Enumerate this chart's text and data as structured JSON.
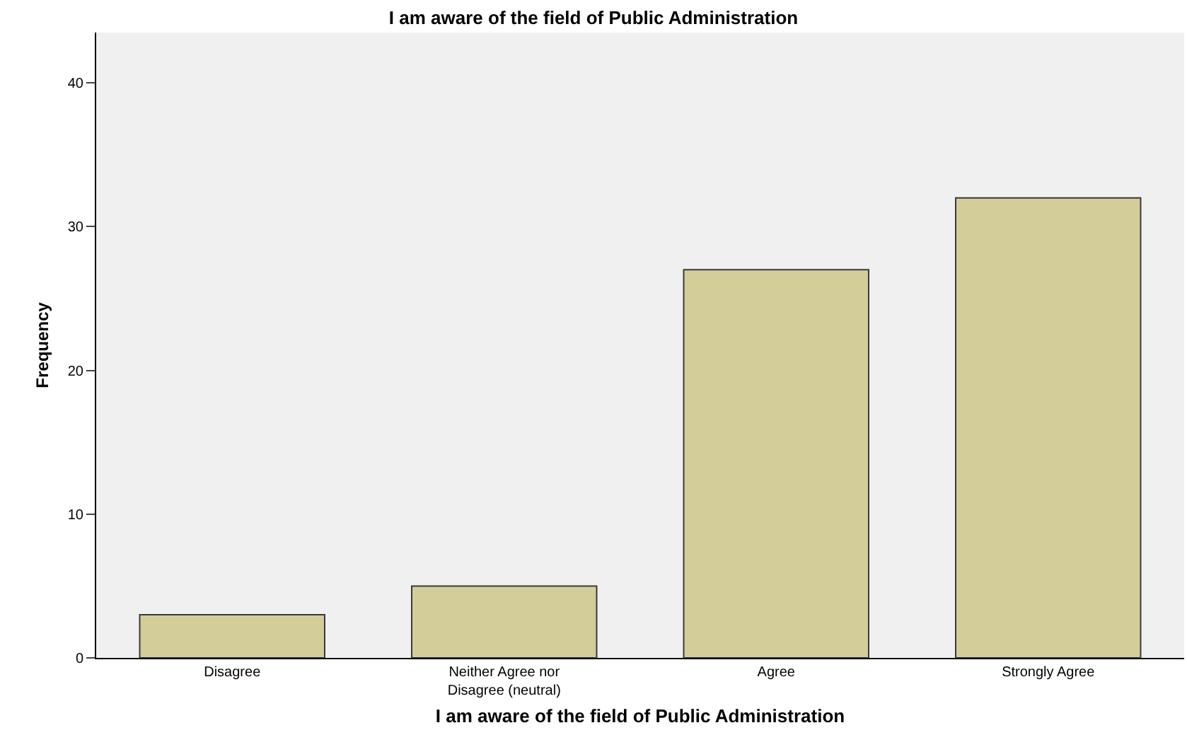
{
  "chart_data": {
    "type": "bar",
    "title": "I am aware of the field of Public Administration",
    "xlabel": "I am aware of the field of Public Administration",
    "ylabel": "Frequency",
    "categories": [
      "Disagree",
      "Neither Agree nor\nDisagree (neutral)",
      "Agree",
      "Strongly Agree"
    ],
    "values": [
      3,
      5,
      27,
      32
    ],
    "color": "#d3ce99",
    "ylim": [
      0,
      43.5
    ],
    "yticks": [
      0,
      10,
      20,
      30,
      40
    ],
    "grid": false,
    "legend": false
  }
}
